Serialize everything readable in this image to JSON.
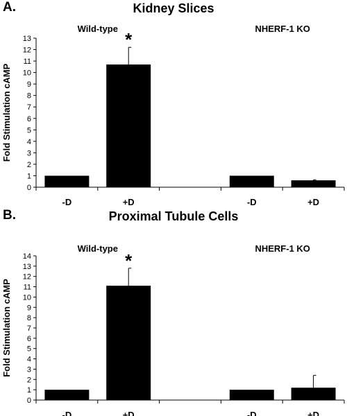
{
  "chart_data": [
    {
      "type": "bar",
      "panel_label": "A.",
      "title": "Kidney Slices",
      "ylabel": "Fold Stimulation cAMP",
      "xlabel": "",
      "ylim": [
        0,
        13
      ],
      "yticks": [
        0,
        1,
        2,
        3,
        4,
        5,
        6,
        7,
        8,
        9,
        10,
        11,
        12,
        13
      ],
      "groups": [
        "Wild-type",
        "NHERF-1 KO"
      ],
      "categories": [
        "-D",
        "+D",
        "-D",
        "+D"
      ],
      "values": [
        1.0,
        10.7,
        1.0,
        0.6
      ],
      "errors": [
        0,
        1.5,
        0,
        0.05
      ],
      "significance": [
        "",
        "*",
        "",
        ""
      ],
      "bar_color": "#000000",
      "grid": false
    },
    {
      "type": "bar",
      "panel_label": "B.",
      "title": "Proximal Tubule Cells",
      "ylabel": "Fold Stimulation cAMP",
      "xlabel": "",
      "ylim": [
        0,
        14
      ],
      "yticks": [
        0,
        1,
        2,
        3,
        4,
        5,
        6,
        7,
        8,
        9,
        10,
        11,
        12,
        13,
        14
      ],
      "groups": [
        "Wild-type",
        "NHERF-1 KO"
      ],
      "categories": [
        "-D",
        "+D",
        "-D",
        "+D"
      ],
      "values": [
        1.0,
        11.1,
        1.0,
        1.2
      ],
      "errors": [
        0,
        1.7,
        0,
        1.2
      ],
      "significance": [
        "",
        "*",
        "",
        ""
      ],
      "bar_color": "#000000",
      "grid": false
    }
  ]
}
